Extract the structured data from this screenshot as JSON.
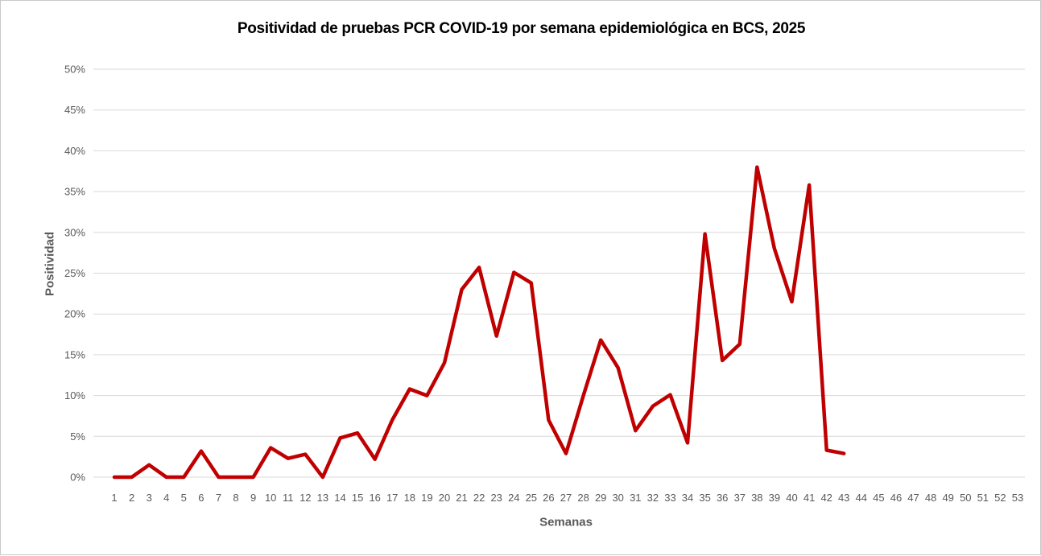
{
  "window": {
    "background": "#FFFFFF",
    "border_color": "#C9C9C9"
  },
  "chart_data": {
    "type": "line",
    "title": "Positividad de pruebas PCR COVID-19 por semana epidemiológica en BCS, 2025",
    "xlabel": "Semanas",
    "ylabel": "Positividad",
    "x_ticks": [
      1,
      2,
      3,
      4,
      5,
      6,
      7,
      8,
      9,
      10,
      11,
      12,
      13,
      14,
      15,
      16,
      17,
      18,
      19,
      20,
      21,
      22,
      23,
      24,
      25,
      26,
      27,
      28,
      29,
      30,
      31,
      32,
      33,
      34,
      35,
      36,
      37,
      38,
      39,
      40,
      41,
      42,
      43,
      44,
      45,
      46,
      47,
      48,
      49,
      50,
      51,
      52,
      53
    ],
    "y_ticks_percent": [
      0,
      5,
      10,
      15,
      20,
      25,
      30,
      35,
      40,
      45,
      50
    ],
    "ylim_percent": [
      0,
      50
    ],
    "grid": "horizontal",
    "legend_position": "none",
    "series": [
      {
        "name": "Positividad",
        "color": "#C00000",
        "x": [
          1,
          2,
          3,
          4,
          5,
          6,
          7,
          8,
          9,
          10,
          11,
          12,
          13,
          14,
          15,
          16,
          17,
          18,
          19,
          20,
          21,
          22,
          23,
          24,
          25,
          26,
          27,
          28,
          29,
          30,
          31,
          32,
          33,
          34,
          35,
          36,
          37,
          38,
          39,
          40,
          41,
          42,
          43
        ],
        "values_percent": [
          0,
          0,
          1.5,
          0,
          0,
          3.2,
          0,
          0,
          0,
          3.6,
          2.3,
          2.8,
          0,
          4.8,
          5.4,
          2.2,
          7.0,
          10.8,
          10.0,
          14.0,
          23.0,
          25.7,
          17.3,
          25.1,
          23.8,
          7.0,
          2.9,
          10.0,
          16.8,
          13.4,
          5.7,
          8.7,
          10.1,
          4.2,
          29.8,
          14.3,
          16.3,
          38.0,
          28.0,
          21.5,
          35.8,
          3.3,
          2.9
        ]
      }
    ],
    "styles": {
      "gridline_color": "#D9D9D9",
      "tick_label_color": "#595959",
      "axis_title_color": "#595959",
      "title_color": "#000000",
      "line_color": "#C00000"
    }
  }
}
